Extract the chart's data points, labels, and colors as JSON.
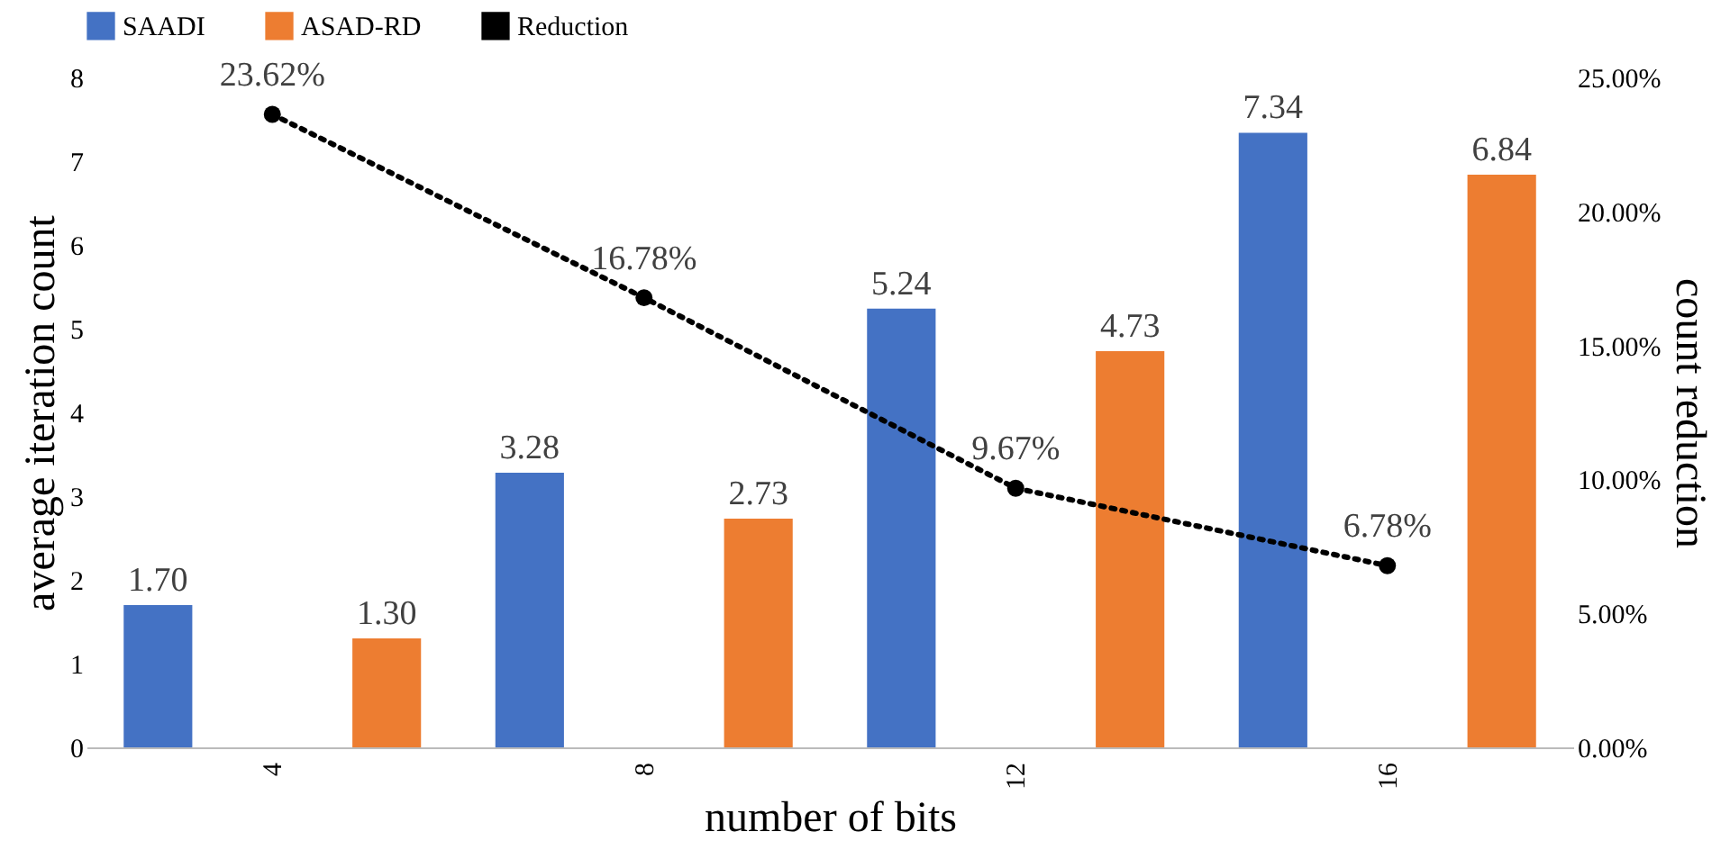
{
  "chart_data": {
    "type": "bar",
    "xlabel": "number of bits",
    "ylabel": "average iteration count",
    "y2label": "count reduction",
    "categories": [
      "4",
      "8",
      "12",
      "16"
    ],
    "series": [
      {
        "name": "SAADI",
        "color": "#4472c4",
        "values": [
          1.7,
          3.28,
          5.24,
          7.34
        ],
        "value_labels": [
          "1.70",
          "3.28",
          "5.24",
          "7.34"
        ]
      },
      {
        "name": "ASAD-RD",
        "color": "#ed7d31",
        "values": [
          1.3,
          2.73,
          4.73,
          6.84
        ],
        "value_labels": [
          "1.30",
          "2.73",
          "4.73",
          "6.84"
        ]
      },
      {
        "name": "Reduction",
        "type": "line",
        "axis": "y2",
        "color": "#000000",
        "marker": "circle",
        "line_style": "dotted",
        "values": [
          23.62,
          16.78,
          9.67,
          6.78
        ],
        "value_labels": [
          "23.62%",
          "16.78%",
          "9.67%",
          "6.78%"
        ]
      }
    ],
    "ylim": [
      0,
      8
    ],
    "yticks": [
      0,
      1,
      2,
      3,
      4,
      5,
      6,
      7,
      8
    ],
    "y2lim": [
      0,
      25
    ],
    "y2ticks": [
      {
        "value": 0,
        "label": "0.00%"
      },
      {
        "value": 5,
        "label": "5.00%"
      },
      {
        "value": 10,
        "label": "10.00%"
      },
      {
        "value": 15,
        "label": "15.00%"
      },
      {
        "value": 20,
        "label": "20.00%"
      },
      {
        "value": 25,
        "label": "25.00%"
      }
    ],
    "grid": false,
    "legend": "top"
  }
}
